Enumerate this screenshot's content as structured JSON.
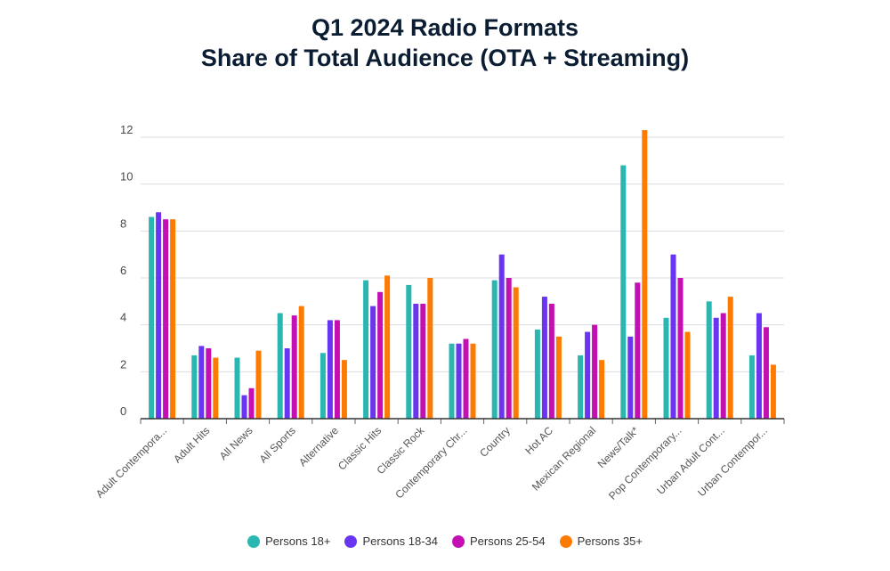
{
  "chart_data": {
    "type": "bar",
    "title_line1": "Q1 2024 Radio Formats",
    "title_line2": "Share of Total Audience (OTA + Streaming)",
    "categories": [
      "Adult Contempora...",
      "Adult Hits",
      "All News",
      "All Sports",
      "Alternative",
      "Classic Hits",
      "Classic Rock",
      "Contemporary Chr...",
      "Country",
      "Hot AC",
      "Mexican Regional",
      "News/Talk*",
      "Pop Contemporary...",
      "Urban Adult Cont...",
      "Urban Contempor..."
    ],
    "series": [
      {
        "name": "Persons 18+",
        "color": "#2ab7b2",
        "values": [
          8.6,
          2.7,
          2.6,
          4.5,
          2.8,
          5.9,
          5.7,
          3.2,
          5.9,
          3.8,
          2.7,
          10.8,
          4.3,
          5.0,
          2.7
        ]
      },
      {
        "name": "Persons 18-34",
        "color": "#6a35f0",
        "values": [
          8.8,
          3.1,
          1.0,
          3.0,
          4.2,
          4.8,
          4.9,
          3.2,
          7.0,
          5.2,
          3.7,
          3.5,
          7.0,
          4.3,
          4.5
        ]
      },
      {
        "name": "Persons 25-54",
        "color": "#c40fb5",
        "values": [
          8.5,
          3.0,
          1.3,
          4.4,
          4.2,
          5.4,
          4.9,
          3.4,
          6.0,
          4.9,
          4.0,
          5.8,
          6.0,
          4.5,
          3.9
        ]
      },
      {
        "name": "Persons 35+",
        "color": "#ff7a00",
        "values": [
          8.5,
          2.6,
          2.9,
          4.8,
          2.5,
          6.1,
          6.0,
          3.2,
          5.6,
          3.5,
          2.5,
          12.3,
          3.7,
          5.2,
          2.3
        ]
      }
    ],
    "yticks": [
      0,
      2,
      4,
      6,
      8,
      10,
      12
    ],
    "ylim": [
      0,
      12
    ],
    "grid": true,
    "legend_position": "bottom"
  }
}
